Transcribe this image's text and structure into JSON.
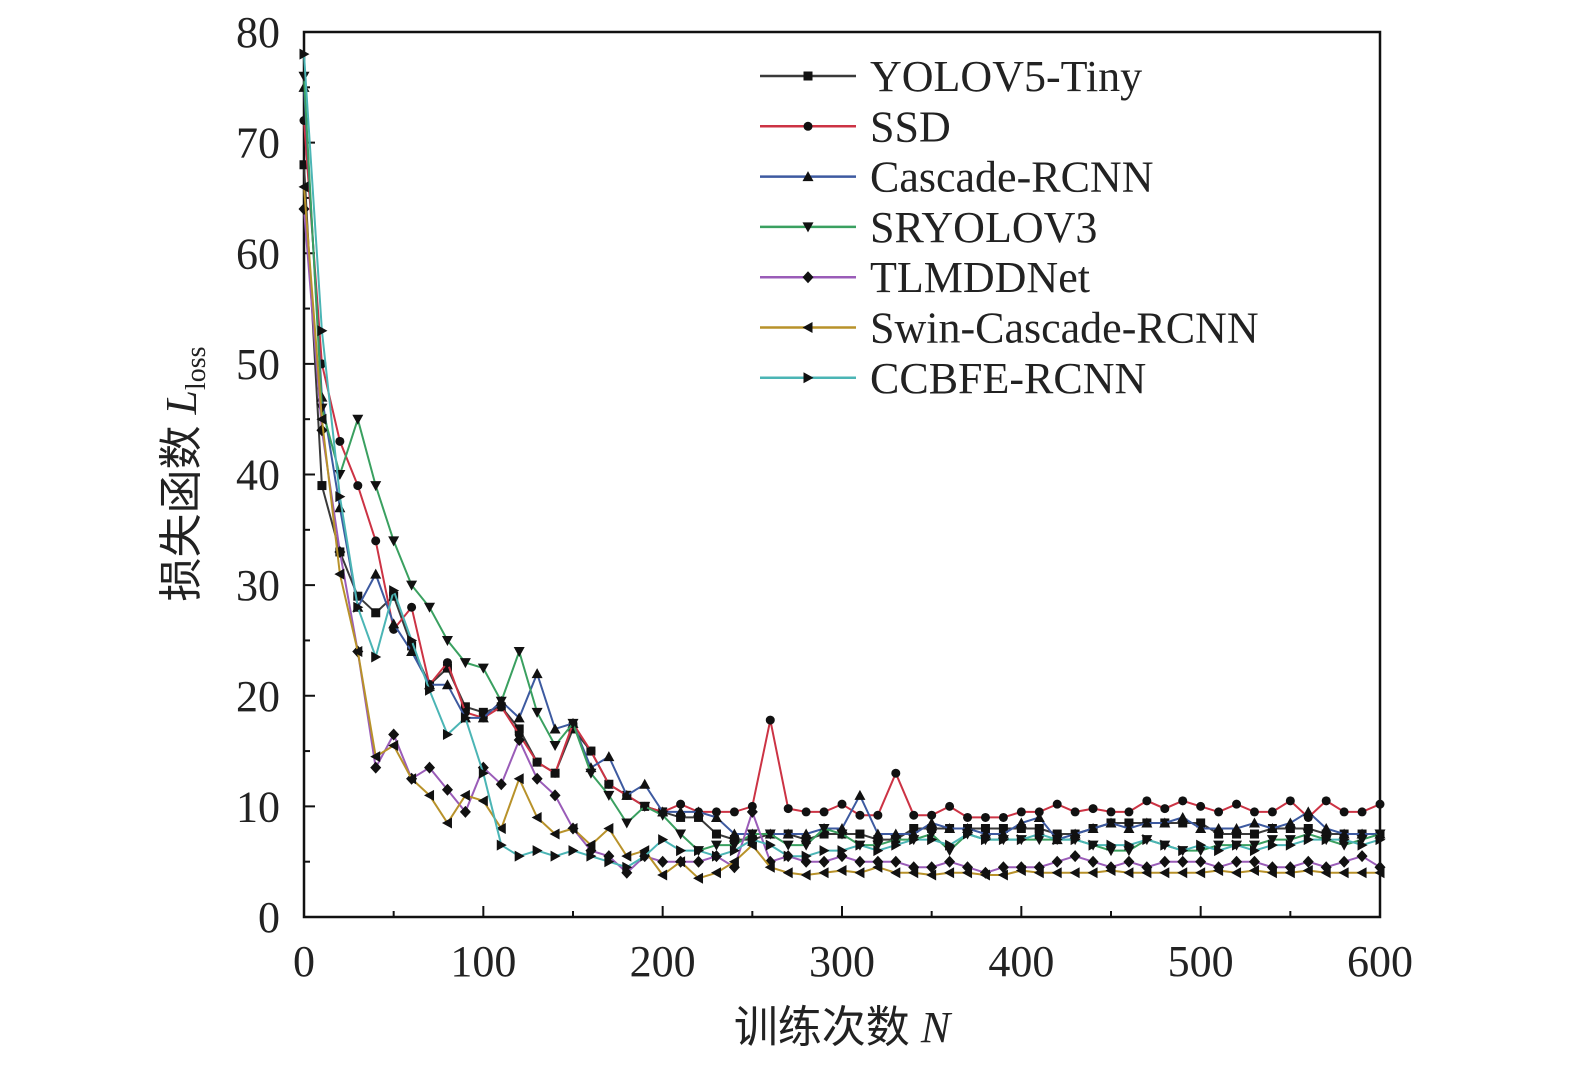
{
  "chart_data": {
    "type": "line",
    "xlabel_prefix": "训练次数 ",
    "xlabel_var": "N",
    "ylabel_prefix": "损失函数 ",
    "ylabel_var": "L",
    "ylabel_sub": "loss",
    "xlim": [
      0,
      600
    ],
    "ylim": [
      0,
      80
    ],
    "xticks": [
      0,
      100,
      200,
      300,
      400,
      500,
      600
    ],
    "yticks": [
      0,
      10,
      20,
      30,
      40,
      50,
      60,
      70,
      80
    ],
    "legend_position": "top-right",
    "x": [
      0,
      10,
      20,
      30,
      40,
      50,
      60,
      70,
      80,
      90,
      100,
      110,
      120,
      130,
      140,
      150,
      160,
      170,
      180,
      190,
      200,
      210,
      220,
      230,
      240,
      250,
      260,
      270,
      280,
      290,
      300,
      310,
      320,
      330,
      340,
      350,
      360,
      370,
      380,
      390,
      400,
      410,
      420,
      430,
      440,
      450,
      460,
      470,
      480,
      490,
      500,
      510,
      520,
      530,
      540,
      550,
      560,
      570,
      580,
      590,
      600
    ],
    "series": [
      {
        "name": "YOLOV5-Tiny",
        "color": "#3a3a3a",
        "marker": "square",
        "values": [
          68,
          39,
          33,
          29,
          27.5,
          29,
          24.5,
          21,
          22.5,
          19,
          18.5,
          19,
          17,
          14,
          13,
          17,
          15,
          12,
          11,
          10,
          9.5,
          9,
          9,
          7.5,
          7,
          7,
          7.5,
          7.5,
          7,
          7.5,
          7.5,
          7.5,
          7,
          7,
          8,
          8,
          8,
          8,
          8,
          8,
          8,
          8,
          7.5,
          7.5,
          8,
          8.5,
          8.5,
          8.5,
          8.5,
          8.5,
          8.5,
          7.5,
          7.5,
          7.5,
          8,
          8,
          8,
          7.5,
          7.5,
          7.5,
          7.5
        ]
      },
      {
        "name": "SSD",
        "color": "#cc3344",
        "marker": "circle",
        "values": [
          72,
          50,
          43,
          39,
          34,
          26,
          28,
          21,
          23,
          18.5,
          18,
          19,
          16.5,
          14,
          13,
          17.5,
          15,
          12,
          11,
          10,
          9.5,
          10.2,
          9.5,
          9.5,
          9.5,
          10,
          17.8,
          9.8,
          9.5,
          9.5,
          10.2,
          9.2,
          9.2,
          13,
          9.2,
          9.2,
          10,
          9,
          9,
          9,
          9.5,
          9.5,
          10.2,
          9.5,
          9.8,
          9.5,
          9.5,
          10.5,
          9.8,
          10.5,
          10,
          9.5,
          10.2,
          9.5,
          9.5,
          10.5,
          9,
          10.5,
          9.5,
          9.5,
          10.2
        ]
      },
      {
        "name": "Cascade-RCNN",
        "color": "#3d5aa0",
        "marker": "triangle-up",
        "values": [
          75,
          47,
          37,
          28,
          31,
          26.5,
          24,
          21,
          21,
          18,
          18,
          19.5,
          18,
          22,
          17,
          17.5,
          13.5,
          14.5,
          11,
          12,
          9.5,
          9.5,
          9.5,
          9,
          7.5,
          7.5,
          7.5,
          7.5,
          7.5,
          8,
          8,
          11,
          7.5,
          7.5,
          7.5,
          8.5,
          8,
          8,
          7.5,
          7.5,
          8.5,
          9,
          7,
          7.5,
          8,
          8.5,
          8,
          8.5,
          8.5,
          9,
          8,
          8,
          8,
          8.5,
          8,
          8.5,
          9.5,
          8,
          7.5,
          7.5,
          7.5
        ]
      },
      {
        "name": "SRYOLOV3",
        "color": "#3aa060",
        "marker": "triangle-down",
        "values": [
          76,
          46,
          40,
          45,
          39,
          34,
          30,
          28,
          25,
          23,
          22.5,
          19.5,
          24,
          18.5,
          15.5,
          17.5,
          13,
          11,
          8.5,
          10,
          9.2,
          7.5,
          6,
          6.5,
          6.5,
          7.5,
          7.5,
          6.5,
          6.5,
          8,
          7.5,
          6.5,
          6.5,
          7,
          7,
          7.5,
          6,
          7.5,
          7,
          7,
          7,
          7,
          7,
          7,
          6.5,
          6,
          6,
          7,
          6.5,
          6,
          6,
          6.5,
          6.5,
          6.5,
          7,
          7,
          7.5,
          7,
          6.5,
          7,
          7.5
        ]
      },
      {
        "name": "TLMDDNet",
        "color": "#9a5cb8",
        "marker": "diamond",
        "values": [
          64,
          44,
          33,
          24,
          13.5,
          16.5,
          12.5,
          13.5,
          11.5,
          9.5,
          13.5,
          12,
          16,
          12.5,
          11,
          8,
          6,
          5.5,
          4,
          5.5,
          5,
          5,
          5,
          5.5,
          4.5,
          9.5,
          5,
          5.5,
          5,
          5,
          5.5,
          5,
          5,
          5,
          4.5,
          4.5,
          5,
          4.5,
          4,
          4.5,
          4.5,
          4.5,
          5,
          5.5,
          5,
          4.5,
          5,
          4.5,
          5,
          5,
          5,
          4.5,
          5,
          5,
          4.5,
          4.5,
          5,
          4.5,
          5,
          5.5,
          4.5
        ]
      },
      {
        "name": "Swin-Cascade-RCNN",
        "color": "#b8922a",
        "marker": "triangle-left",
        "values": [
          66,
          45,
          31,
          24,
          14.5,
          15.5,
          12.5,
          11,
          8.5,
          11,
          10.5,
          8,
          12.5,
          9,
          7.5,
          8,
          6.5,
          8,
          5.5,
          6,
          3.8,
          5,
          3.5,
          4,
          5,
          6.5,
          4.5,
          4,
          3.8,
          4,
          4.2,
          4,
          4.5,
          4,
          4,
          3.8,
          4,
          4,
          3.8,
          3.8,
          4.2,
          4,
          4,
          4,
          4,
          4.2,
          4,
          4,
          4,
          4,
          4,
          4.2,
          4,
          4.2,
          4,
          4,
          4.2,
          4,
          4,
          4,
          4
        ]
      },
      {
        "name": "CCBFE-RCNN",
        "color": "#4bb5b5",
        "marker": "triangle-right",
        "values": [
          78,
          53,
          38,
          28,
          23.5,
          29.5,
          25,
          20.5,
          16.5,
          18,
          13,
          6.5,
          5.5,
          6,
          5.5,
          6,
          5.5,
          5,
          4.5,
          5.5,
          7,
          6,
          6,
          5.5,
          6,
          7,
          6.5,
          5.5,
          5.5,
          6,
          6,
          6.5,
          6,
          6.5,
          7,
          7,
          6.5,
          7.5,
          7,
          7,
          7,
          7.5,
          7,
          7,
          6.5,
          6.5,
          6.5,
          7,
          6.5,
          6,
          6.5,
          6,
          6.5,
          6,
          6.5,
          6.5,
          7,
          7,
          7,
          6.5,
          7
        ]
      }
    ]
  }
}
